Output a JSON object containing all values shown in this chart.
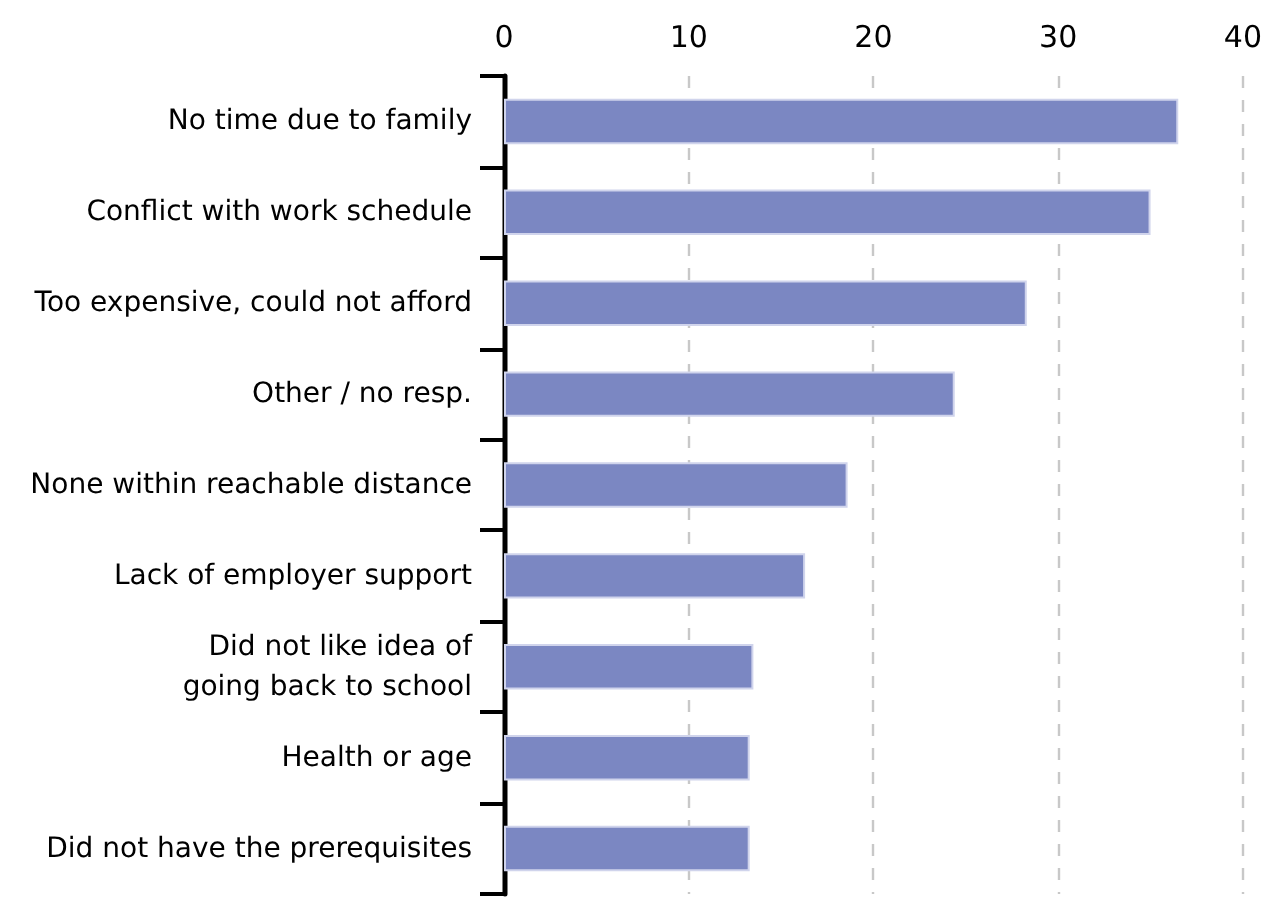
{
  "chart_data": {
    "type": "bar",
    "orientation": "horizontal",
    "categories": [
      "No time due to family",
      "Conflict with work schedule",
      "Too expensive, could not afford",
      "Other / no resp.",
      "None within reachable distance",
      "Lack of employer support",
      "Did not like idea of\ngoing back to school",
      "Health or age",
      "Did not have the prerequisites"
    ],
    "values": [
      36.5,
      35.0,
      28.3,
      24.4,
      18.6,
      16.3,
      13.5,
      13.3,
      13.3
    ],
    "color": "#7b87c2",
    "xlim": [
      0,
      40
    ],
    "xticks": [
      0,
      10,
      20,
      30,
      40
    ],
    "grid": "x"
  }
}
